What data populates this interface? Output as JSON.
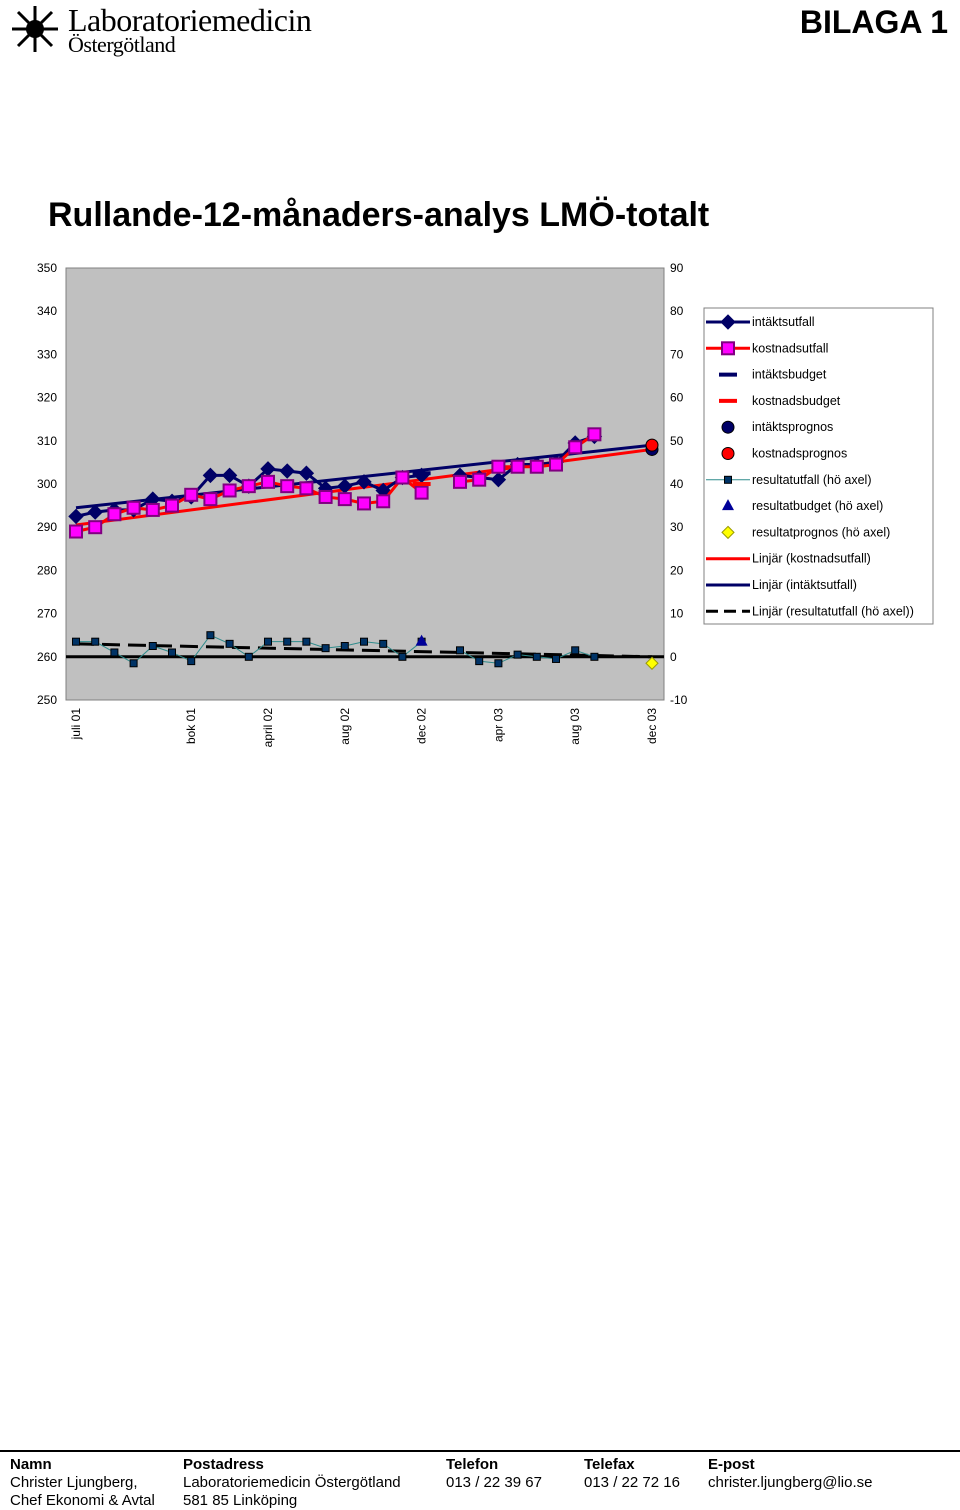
{
  "header": {
    "logo_line1": "Laboratoriemedicin",
    "logo_line2": "Östergötland",
    "badge": "BILAGA 1"
  },
  "chart_data": {
    "type": "line",
    "title": "Rullande-12-månaders-analys LMÖ-totalt",
    "xlabel": "",
    "ylabel": "",
    "ylim": [
      250,
      350
    ],
    "y2lim": [
      -10,
      90
    ],
    "y_ticks": [
      "350",
      "340",
      "330",
      "320",
      "310",
      "300",
      "290",
      "280",
      "270",
      "260",
      "250"
    ],
    "y2_ticks": [
      "90",
      "80",
      "70",
      "60",
      "50",
      "40",
      "30",
      "20",
      "10",
      "0",
      "-10"
    ],
    "x_tick_labels": [
      {
        "index": 0,
        "label": "juli 01"
      },
      {
        "index": 6,
        "label": "bok 01"
      },
      {
        "index": 10,
        "label": "april 02"
      },
      {
        "index": 14,
        "label": "aug 02"
      },
      {
        "index": 18,
        "label": "dec 02"
      },
      {
        "index": 22,
        "label": "apr 03"
      },
      {
        "index": 26,
        "label": "aug 03"
      },
      {
        "index": 30,
        "label": "dec 03"
      }
    ],
    "n_points": 31,
    "grid": false,
    "legend_position": "right",
    "series": [
      {
        "name": "intäktsutfall",
        "axis": "left",
        "color": "#000066",
        "marker": "diamond",
        "values": [
          292.5,
          293.5,
          294.0,
          294.0,
          296.5,
          296.0,
          297.0,
          302.0,
          302.0,
          299.5,
          303.5,
          303.0,
          302.5,
          299.0,
          299.5,
          300.5,
          298.5,
          301.5,
          302.0,
          null,
          302.0,
          301.5,
          301.0,
          304.5,
          304.5,
          305.0,
          309.5,
          311.0,
          null,
          null,
          null
        ]
      },
      {
        "name": "kostnadsutfall",
        "axis": "left",
        "color": "#ff00ff",
        "marker": "square",
        "values": [
          289.0,
          290.0,
          293.0,
          294.5,
          294.0,
          295.0,
          297.5,
          296.5,
          298.5,
          299.5,
          300.5,
          299.5,
          299.0,
          297.0,
          296.5,
          295.5,
          296.0,
          301.5,
          298.0,
          null,
          300.5,
          301.0,
          304.0,
          304.0,
          304.0,
          304.5,
          308.5,
          311.5,
          null,
          null,
          null
        ]
      },
      {
        "name": "intäktsbudget",
        "axis": "left",
        "color": "#000066",
        "marker": "dash",
        "values": [
          null,
          null,
          null,
          null,
          null,
          null,
          null,
          null,
          null,
          null,
          null,
          null,
          null,
          null,
          null,
          null,
          null,
          null,
          302.5,
          null,
          null,
          null,
          null,
          null,
          null,
          null,
          null,
          null,
          null,
          null,
          null
        ]
      },
      {
        "name": "kostnadsbudget",
        "axis": "left",
        "color": "#ff0000",
        "marker": "dash",
        "values": [
          null,
          null,
          null,
          null,
          null,
          null,
          null,
          null,
          null,
          null,
          null,
          null,
          null,
          null,
          null,
          null,
          null,
          null,
          300.0,
          null,
          null,
          null,
          null,
          null,
          null,
          null,
          null,
          null,
          null,
          null,
          null
        ]
      },
      {
        "name": "intäktsprognos",
        "axis": "left",
        "color": "#000066",
        "marker": "circle",
        "values": [
          null,
          null,
          null,
          null,
          null,
          null,
          null,
          null,
          null,
          null,
          null,
          null,
          null,
          null,
          null,
          null,
          null,
          null,
          null,
          null,
          null,
          null,
          null,
          null,
          null,
          null,
          null,
          null,
          null,
          null,
          308.0
        ]
      },
      {
        "name": "kostnadsprognos",
        "axis": "left",
        "color": "#ff0000",
        "marker": "circle",
        "values": [
          null,
          null,
          null,
          null,
          null,
          null,
          null,
          null,
          null,
          null,
          null,
          null,
          null,
          null,
          null,
          null,
          null,
          null,
          null,
          null,
          null,
          null,
          null,
          null,
          null,
          null,
          null,
          null,
          null,
          null,
          309.0
        ]
      },
      {
        "name": "resultatutfall (hö axel)",
        "axis": "right",
        "color": "#003366",
        "marker": "square-small",
        "values": [
          3.5,
          3.5,
          1.0,
          -1.5,
          2.5,
          1.0,
          -1.0,
          5.0,
          3.0,
          0.0,
          3.5,
          3.5,
          3.5,
          2.0,
          2.5,
          3.5,
          3.0,
          0.0,
          3.5,
          null,
          1.5,
          -1.0,
          -1.5,
          0.5,
          0.0,
          -0.5,
          1.5,
          0.0,
          null,
          null,
          null
        ]
      },
      {
        "name": "resultatbudget (hö axel)",
        "axis": "right",
        "color": "#000099",
        "marker": "triangle",
        "values": [
          null,
          null,
          null,
          null,
          null,
          null,
          null,
          null,
          null,
          null,
          null,
          null,
          null,
          null,
          null,
          null,
          null,
          null,
          3.5,
          null,
          null,
          null,
          null,
          null,
          null,
          null,
          null,
          null,
          null,
          null,
          null
        ]
      },
      {
        "name": "resultatprognos (hö axel)",
        "axis": "right",
        "color": "#ffff00",
        "marker": "diamond-small",
        "values": [
          null,
          null,
          null,
          null,
          null,
          null,
          null,
          null,
          null,
          null,
          null,
          null,
          null,
          null,
          null,
          null,
          null,
          null,
          null,
          null,
          null,
          null,
          null,
          null,
          null,
          null,
          null,
          null,
          null,
          null,
          -1.5
        ]
      },
      {
        "name": "Linjär (kostnadsutfall)",
        "axis": "left",
        "color": "#ff0000",
        "marker": "trend",
        "values": [
          290.5,
          308.0
        ]
      },
      {
        "name": "Linjär (intäktsutfall)",
        "axis": "left",
        "color": "#000066",
        "marker": "trend",
        "values": [
          294.5,
          309.0
        ]
      },
      {
        "name": "Linjär (resultatutfall (hö axel))",
        "axis": "right",
        "color": "#000000",
        "marker": "trend-dash",
        "values": [
          3.0,
          0.0
        ]
      }
    ]
  },
  "footer": {
    "columns": [
      {
        "header": "Namn",
        "lines": [
          "Christer Ljungberg,",
          "Chef Ekonomi & Avtal"
        ]
      },
      {
        "header": "Postadress",
        "lines": [
          "Laboratoriemedicin Östergötland",
          "581 85 Linköping"
        ]
      },
      {
        "header": "Telefon",
        "lines": [
          "013 / 22 39 67"
        ]
      },
      {
        "header": "Telefax",
        "lines": [
          "013 / 22 72 16"
        ]
      },
      {
        "header": "E-post",
        "lines": [
          "christer.ljungberg@lio.se"
        ]
      }
    ]
  }
}
